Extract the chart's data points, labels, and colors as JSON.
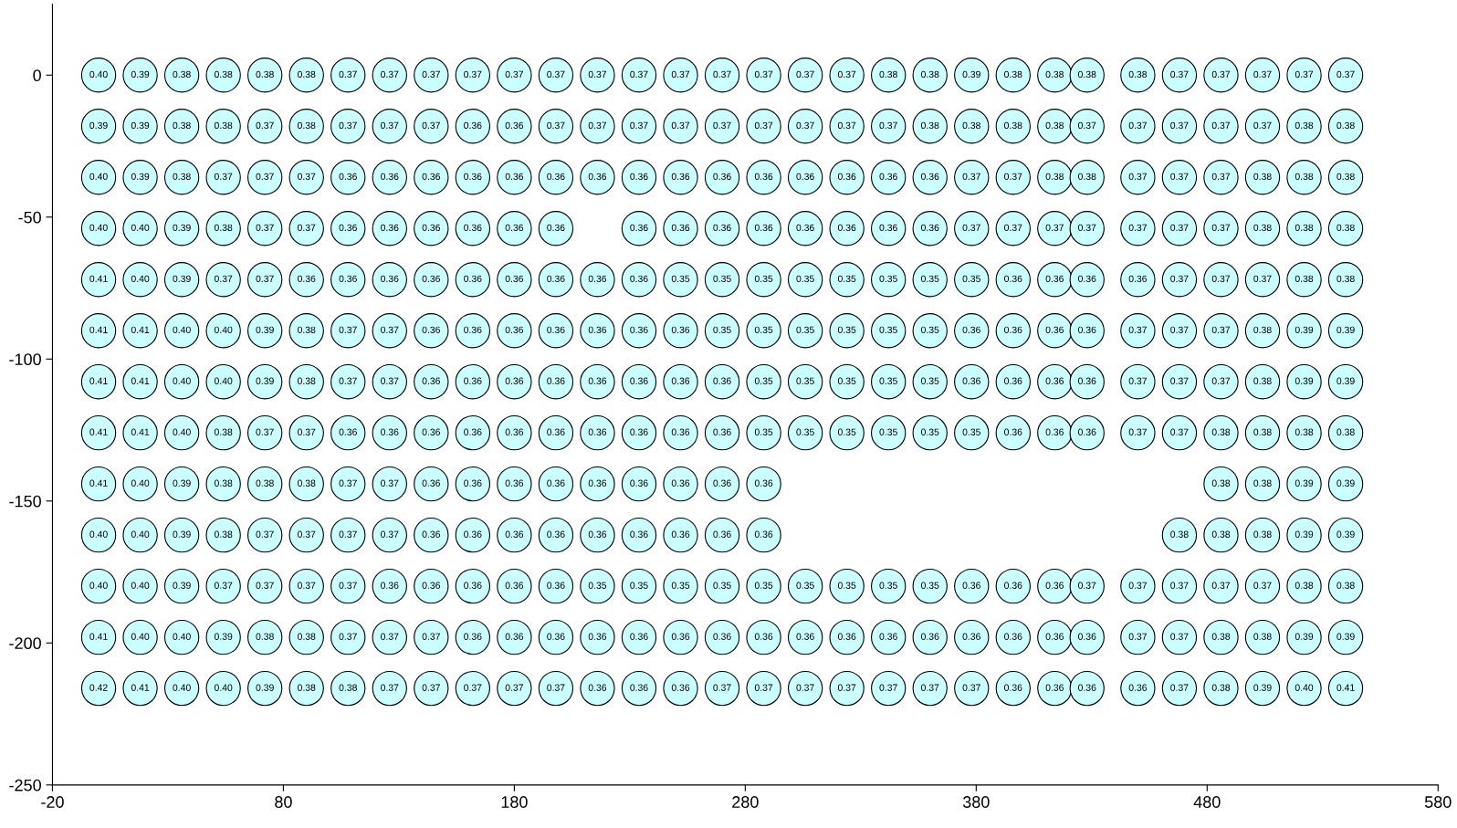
{
  "chart_data": {
    "type": "scatter",
    "marker": "circle",
    "grid": false,
    "x": [
      0,
      18,
      36,
      54,
      72,
      90,
      108,
      126,
      144,
      162,
      180,
      198,
      216,
      234,
      252,
      270,
      288,
      306,
      324,
      342,
      360,
      378,
      396,
      414,
      428,
      450,
      468,
      486,
      504,
      522,
      540
    ],
    "xlim": [
      -20,
      580
    ],
    "xticks": [
      -20,
      80,
      180,
      280,
      380,
      480,
      580
    ],
    "ylim": [
      -250,
      25
    ],
    "yticks": [
      0,
      -50,
      -100,
      -150,
      -200,
      -250
    ],
    "series": [
      {
        "color": "#ccffff",
        "values": [
          0,
          0,
          0,
          0,
          0,
          0,
          0,
          0,
          0,
          0,
          0,
          0,
          0,
          0,
          0,
          0,
          0,
          0,
          0,
          0,
          0,
          0,
          0,
          0,
          0,
          0,
          0,
          0,
          0,
          0,
          0
        ]
      },
      {
        "color": "#ccffff",
        "values": [
          -18,
          -18,
          -18,
          -18,
          -18,
          -18,
          -18,
          -18,
          -18,
          -18,
          -18,
          -18,
          -18,
          -18,
          -18,
          -18,
          -18,
          -18,
          -18,
          -18,
          -18,
          -18,
          -18,
          -18,
          -18,
          -18,
          -18,
          -18,
          -18,
          -18,
          -18
        ]
      },
      {
        "color": "#ccffff",
        "values": [
          -36,
          -36,
          -36,
          -36,
          -36,
          -36,
          -36,
          -36,
          -36,
          -36,
          -36,
          -36,
          -36,
          -36,
          -36,
          -36,
          -36,
          -36,
          -36,
          -36,
          -36,
          -36,
          -36,
          -36,
          -36,
          -36,
          -36,
          -36,
          -36,
          -36,
          -36
        ]
      },
      {
        "color": "#ccffff",
        "values": [
          -54,
          -54,
          -54,
          -54,
          -54,
          -54,
          -54,
          -54,
          -54,
          -54,
          -54,
          -54,
          null,
          -54,
          -54,
          -54,
          -54,
          -54,
          -54,
          -54,
          -54,
          -54,
          -54,
          -54,
          -54,
          -54,
          -54,
          -54,
          -54,
          -54,
          -54
        ]
      },
      {
        "color": "#ccffff",
        "values": [
          -72,
          -72,
          -72,
          -72,
          -72,
          -72,
          -72,
          -72,
          -72,
          -72,
          -72,
          -72,
          -72,
          -72,
          -72,
          -72,
          -72,
          -72,
          -72,
          -72,
          -72,
          -72,
          -72,
          -72,
          -72,
          -72,
          -72,
          -72,
          -72,
          -72,
          -72
        ]
      },
      {
        "color": "#ccffff",
        "values": [
          -90,
          -90,
          -90,
          -90,
          -90,
          -90,
          -90,
          -90,
          -90,
          -90,
          -90,
          -90,
          -90,
          -90,
          -90,
          -90,
          -90,
          -90,
          -90,
          -90,
          -90,
          -90,
          -90,
          -90,
          -90,
          -90,
          -90,
          -90,
          -90,
          -90,
          -90
        ]
      },
      {
        "color": "#ccffff",
        "values": [
          -108,
          -108,
          -108,
          -108,
          -108,
          -108,
          -108,
          -108,
          -108,
          -108,
          -108,
          -108,
          -108,
          -108,
          -108,
          -108,
          -108,
          -108,
          -108,
          -108,
          -108,
          -108,
          -108,
          -108,
          -108,
          -108,
          -108,
          -108,
          -108,
          -108,
          -108
        ]
      },
      {
        "color": "#ccffff",
        "values": [
          -126,
          -126,
          -126,
          -126,
          -126,
          -126,
          -126,
          -126,
          -126,
          -126,
          -126,
          -126,
          -126,
          -126,
          -126,
          -126,
          -126,
          -126,
          -126,
          -126,
          -126,
          -126,
          -126,
          -126,
          -126,
          -126,
          -126,
          -126,
          -126,
          -126,
          -126
        ]
      },
      {
        "color": "#ccffff",
        "values": [
          -144,
          -144,
          -144,
          -144,
          -144,
          -144,
          -144,
          -144,
          -144,
          -144,
          -144,
          -144,
          -144,
          -144,
          -144,
          -144,
          -144,
          null,
          null,
          null,
          null,
          null,
          null,
          null,
          null,
          null,
          null,
          -144,
          -144,
          -144,
          -144
        ]
      },
      {
        "color": "#ccffff",
        "values": [
          -162,
          -162,
          -162,
          -162,
          -162,
          -162,
          -162,
          -162,
          -162,
          -162,
          -162,
          -162,
          -162,
          -162,
          -162,
          -162,
          -162,
          null,
          null,
          null,
          null,
          null,
          null,
          null,
          null,
          null,
          -162,
          -162,
          -162,
          -162,
          -162
        ]
      },
      {
        "color": "#ccffff",
        "values": [
          -180,
          -180,
          -180,
          -180,
          -180,
          -180,
          -180,
          -180,
          -180,
          -180,
          -180,
          -180,
          -180,
          -180,
          -180,
          -180,
          -180,
          -180,
          -180,
          -180,
          -180,
          -180,
          -180,
          -180,
          -180,
          -180,
          -180,
          -180,
          -180,
          -180,
          -180
        ]
      },
      {
        "color": "#ccffff",
        "values": [
          -198,
          -198,
          -198,
          -198,
          -198,
          -198,
          -198,
          -198,
          -198,
          -198,
          -198,
          -198,
          -198,
          -198,
          -198,
          -198,
          -198,
          -198,
          -198,
          -198,
          -198,
          -198,
          -198,
          -198,
          -198,
          -198,
          -198,
          -198,
          -198,
          -198,
          -198
        ]
      },
      {
        "color": "#ccffff",
        "values": [
          -216,
          -216,
          -216,
          -216,
          -216,
          -216,
          -216,
          -216,
          -216,
          -216,
          -216,
          -216,
          -216,
          -216,
          -216,
          -216,
          -216,
          -216,
          -216,
          -216,
          -216,
          -216,
          -216,
          -216,
          -216,
          -216,
          -216,
          -216,
          -216,
          -216,
          -216
        ]
      }
    ],
    "annotations": [
      {
        "text": "0.40",
        "x": 0,
        "y": 0
      },
      {
        "text": "0.39",
        "x": 18,
        "y": 0
      },
      {
        "text": "0.38",
        "x": 36,
        "y": 0
      },
      {
        "text": "0.38",
        "x": 54,
        "y": 0
      },
      {
        "text": "0.38",
        "x": 72,
        "y": 0
      },
      {
        "text": "0.38",
        "x": 90,
        "y": 0
      },
      {
        "text": "0.37",
        "x": 108,
        "y": 0
      },
      {
        "text": "0.37",
        "x": 126,
        "y": 0
      },
      {
        "text": "0.37",
        "x": 144,
        "y": 0
      },
      {
        "text": "0.37",
        "x": 162,
        "y": 0
      },
      {
        "text": "0.37",
        "x": 180,
        "y": 0
      },
      {
        "text": "0.37",
        "x": 198,
        "y": 0
      },
      {
        "text": "0.37",
        "x": 216,
        "y": 0
      },
      {
        "text": "0.37",
        "x": 234,
        "y": 0
      },
      {
        "text": "0.37",
        "x": 252,
        "y": 0
      },
      {
        "text": "0.37",
        "x": 270,
        "y": 0
      },
      {
        "text": "0.37",
        "x": 288,
        "y": 0
      },
      {
        "text": "0.37",
        "x": 306,
        "y": 0
      },
      {
        "text": "0.37",
        "x": 324,
        "y": 0
      },
      {
        "text": "0.38",
        "x": 342,
        "y": 0
      },
      {
        "text": "0.38",
        "x": 360,
        "y": 0
      },
      {
        "text": "0.39",
        "x": 378,
        "y": 0
      },
      {
        "text": "0.38",
        "x": 396,
        "y": 0
      },
      {
        "text": "0.38",
        "x": 414,
        "y": 0
      },
      {
        "text": "0.38",
        "x": 428,
        "y": 0
      },
      {
        "text": "0.38",
        "x": 450,
        "y": 0
      },
      {
        "text": "0.37",
        "x": 468,
        "y": 0
      },
      {
        "text": "0.37",
        "x": 486,
        "y": 0
      },
      {
        "text": "0.37",
        "x": 504,
        "y": 0
      },
      {
        "text": "0.37",
        "x": 522,
        "y": 0
      },
      {
        "text": "0.37",
        "x": 540,
        "y": 0
      },
      {
        "text": "0.39",
        "x": 0,
        "y": -18
      },
      {
        "text": "0.39",
        "x": 18,
        "y": -18
      },
      {
        "text": "0.38",
        "x": 36,
        "y": -18
      },
      {
        "text": "0.38",
        "x": 54,
        "y": -18
      },
      {
        "text": "0.37",
        "x": 72,
        "y": -18
      },
      {
        "text": "0.38",
        "x": 90,
        "y": -18
      },
      {
        "text": "0.37",
        "x": 108,
        "y": -18
      },
      {
        "text": "0.37",
        "x": 126,
        "y": -18
      },
      {
        "text": "0.37",
        "x": 144,
        "y": -18
      },
      {
        "text": "0.36",
        "x": 162,
        "y": -18
      },
      {
        "text": "0.36",
        "x": 180,
        "y": -18
      },
      {
        "text": "0.37",
        "x": 198,
        "y": -18
      },
      {
        "text": "0.37",
        "x": 216,
        "y": -18
      },
      {
        "text": "0.37",
        "x": 234,
        "y": -18
      },
      {
        "text": "0.37",
        "x": 252,
        "y": -18
      },
      {
        "text": "0.37",
        "x": 270,
        "y": -18
      },
      {
        "text": "0.37",
        "x": 288,
        "y": -18
      },
      {
        "text": "0.37",
        "x": 306,
        "y": -18
      },
      {
        "text": "0.37",
        "x": 324,
        "y": -18
      },
      {
        "text": "0.37",
        "x": 342,
        "y": -18
      },
      {
        "text": "0.38",
        "x": 360,
        "y": -18
      },
      {
        "text": "0.38",
        "x": 378,
        "y": -18
      },
      {
        "text": "0.38",
        "x": 396,
        "y": -18
      },
      {
        "text": "0.38",
        "x": 414,
        "y": -18
      },
      {
        "text": "0.37",
        "x": 428,
        "y": -18
      },
      {
        "text": "0.37",
        "x": 450,
        "y": -18
      },
      {
        "text": "0.37",
        "x": 468,
        "y": -18
      },
      {
        "text": "0.37",
        "x": 486,
        "y": -18
      },
      {
        "text": "0.37",
        "x": 504,
        "y": -18
      },
      {
        "text": "0.38",
        "x": 522,
        "y": -18
      },
      {
        "text": "0.38",
        "x": 540,
        "y": -18
      },
      {
        "text": "0.40",
        "x": 0,
        "y": -36
      },
      {
        "text": "0.39",
        "x": 18,
        "y": -36
      },
      {
        "text": "0.38",
        "x": 36,
        "y": -36
      },
      {
        "text": "0.37",
        "x": 54,
        "y": -36
      },
      {
        "text": "0.37",
        "x": 72,
        "y": -36
      },
      {
        "text": "0.37",
        "x": 90,
        "y": -36
      },
      {
        "text": "0.36",
        "x": 108,
        "y": -36
      },
      {
        "text": "0.36",
        "x": 126,
        "y": -36
      },
      {
        "text": "0.36",
        "x": 144,
        "y": -36
      },
      {
        "text": "0.36",
        "x": 162,
        "y": -36
      },
      {
        "text": "0.36",
        "x": 180,
        "y": -36
      },
      {
        "text": "0.36",
        "x": 198,
        "y": -36
      },
      {
        "text": "0.36",
        "x": 216,
        "y": -36
      },
      {
        "text": "0.36",
        "x": 234,
        "y": -36
      },
      {
        "text": "0.36",
        "x": 252,
        "y": -36
      },
      {
        "text": "0.36",
        "x": 270,
        "y": -36
      },
      {
        "text": "0.36",
        "x": 288,
        "y": -36
      },
      {
        "text": "0.36",
        "x": 306,
        "y": -36
      },
      {
        "text": "0.36",
        "x": 324,
        "y": -36
      },
      {
        "text": "0.36",
        "x": 342,
        "y": -36
      },
      {
        "text": "0.36",
        "x": 360,
        "y": -36
      },
      {
        "text": "0.37",
        "x": 378,
        "y": -36
      },
      {
        "text": "0.37",
        "x": 396,
        "y": -36
      },
      {
        "text": "0.38",
        "x": 414,
        "y": -36
      },
      {
        "text": "0.38",
        "x": 428,
        "y": -36
      },
      {
        "text": "0.37",
        "x": 450,
        "y": -36
      },
      {
        "text": "0.37",
        "x": 468,
        "y": -36
      },
      {
        "text": "0.37",
        "x": 486,
        "y": -36
      },
      {
        "text": "0.38",
        "x": 504,
        "y": -36
      },
      {
        "text": "0.38",
        "x": 522,
        "y": -36
      },
      {
        "text": "0.38",
        "x": 540,
        "y": -36
      },
      {
        "text": "0.40",
        "x": 0,
        "y": -54
      },
      {
        "text": "0.40",
        "x": 18,
        "y": -54
      },
      {
        "text": "0.39",
        "x": 36,
        "y": -54
      },
      {
        "text": "0.38",
        "x": 54,
        "y": -54
      },
      {
        "text": "0.37",
        "x": 72,
        "y": -54
      },
      {
        "text": "0.37",
        "x": 90,
        "y": -54
      },
      {
        "text": "0.36",
        "x": 108,
        "y": -54
      },
      {
        "text": "0.36",
        "x": 126,
        "y": -54
      },
      {
        "text": "0.36",
        "x": 144,
        "y": -54
      },
      {
        "text": "0.36",
        "x": 162,
        "y": -54
      },
      {
        "text": "0.36",
        "x": 180,
        "y": -54
      },
      {
        "text": "0.36",
        "x": 198,
        "y": -54
      },
      {
        "text": "0.36",
        "x": 234,
        "y": -54
      },
      {
        "text": "0.36",
        "x": 252,
        "y": -54
      },
      {
        "text": "0.36",
        "x": 270,
        "y": -54
      },
      {
        "text": "0.36",
        "x": 288,
        "y": -54
      },
      {
        "text": "0.36",
        "x": 306,
        "y": -54
      },
      {
        "text": "0.36",
        "x": 324,
        "y": -54
      },
      {
        "text": "0.36",
        "x": 342,
        "y": -54
      },
      {
        "text": "0.36",
        "x": 360,
        "y": -54
      },
      {
        "text": "0.37",
        "x": 378,
        "y": -54
      },
      {
        "text": "0.37",
        "x": 396,
        "y": -54
      },
      {
        "text": "0.37",
        "x": 414,
        "y": -54
      },
      {
        "text": "0.37",
        "x": 428,
        "y": -54
      },
      {
        "text": "0.37",
        "x": 450,
        "y": -54
      },
      {
        "text": "0.37",
        "x": 468,
        "y": -54
      },
      {
        "text": "0.37",
        "x": 486,
        "y": -54
      },
      {
        "text": "0.38",
        "x": 504,
        "y": -54
      },
      {
        "text": "0.38",
        "x": 522,
        "y": -54
      },
      {
        "text": "0.38",
        "x": 540,
        "y": -54
      },
      {
        "text": "0.41",
        "x": 0,
        "y": -72
      },
      {
        "text": "0.40",
        "x": 18,
        "y": -72
      },
      {
        "text": "0.39",
        "x": 36,
        "y": -72
      },
      {
        "text": "0.37",
        "x": 54,
        "y": -72
      },
      {
        "text": "0.37",
        "x": 72,
        "y": -72
      },
      {
        "text": "0.36",
        "x": 90,
        "y": -72
      },
      {
        "text": "0.36",
        "x": 108,
        "y": -72
      },
      {
        "text": "0.36",
        "x": 126,
        "y": -72
      },
      {
        "text": "0.36",
        "x": 144,
        "y": -72
      },
      {
        "text": "0.36",
        "x": 162,
        "y": -72
      },
      {
        "text": "0.36",
        "x": 180,
        "y": -72
      },
      {
        "text": "0.36",
        "x": 198,
        "y": -72
      },
      {
        "text": "0.36",
        "x": 216,
        "y": -72
      },
      {
        "text": "0.36",
        "x": 234,
        "y": -72
      },
      {
        "text": "0.35",
        "x": 252,
        "y": -72
      },
      {
        "text": "0.35",
        "x": 270,
        "y": -72
      },
      {
        "text": "0.35",
        "x": 288,
        "y": -72
      },
      {
        "text": "0.35",
        "x": 306,
        "y": -72
      },
      {
        "text": "0.35",
        "x": 324,
        "y": -72
      },
      {
        "text": "0.35",
        "x": 342,
        "y": -72
      },
      {
        "text": "0.35",
        "x": 360,
        "y": -72
      },
      {
        "text": "0.35",
        "x": 378,
        "y": -72
      },
      {
        "text": "0.36",
        "x": 396,
        "y": -72
      },
      {
        "text": "0.36",
        "x": 414,
        "y": -72
      },
      {
        "text": "0.36",
        "x": 428,
        "y": -72
      },
      {
        "text": "0.36",
        "x": 450,
        "y": -72
      },
      {
        "text": "0.37",
        "x": 468,
        "y": -72
      },
      {
        "text": "0.37",
        "x": 486,
        "y": -72
      },
      {
        "text": "0.37",
        "x": 504,
        "y": -72
      },
      {
        "text": "0.38",
        "x": 522,
        "y": -72
      },
      {
        "text": "0.38",
        "x": 540,
        "y": -72
      },
      {
        "text": "0.41",
        "x": 0,
        "y": -90
      },
      {
        "text": "0.41",
        "x": 18,
        "y": -90
      },
      {
        "text": "0.40",
        "x": 36,
        "y": -90
      },
      {
        "text": "0.40",
        "x": 54,
        "y": -90
      },
      {
        "text": "0.39",
        "x": 72,
        "y": -90
      },
      {
        "text": "0.38",
        "x": 90,
        "y": -90
      },
      {
        "text": "0.37",
        "x": 108,
        "y": -90
      },
      {
        "text": "0.37",
        "x": 126,
        "y": -90
      },
      {
        "text": "0.36",
        "x": 144,
        "y": -90
      },
      {
        "text": "0.36",
        "x": 162,
        "y": -90
      },
      {
        "text": "0.36",
        "x": 180,
        "y": -90
      },
      {
        "text": "0.36",
        "x": 198,
        "y": -90
      },
      {
        "text": "0.36",
        "x": 216,
        "y": -90
      },
      {
        "text": "0.36",
        "x": 234,
        "y": -90
      },
      {
        "text": "0.36",
        "x": 252,
        "y": -90
      },
      {
        "text": "0.35",
        "x": 270,
        "y": -90
      },
      {
        "text": "0.35",
        "x": 288,
        "y": -90
      },
      {
        "text": "0.35",
        "x": 306,
        "y": -90
      },
      {
        "text": "0.35",
        "x": 324,
        "y": -90
      },
      {
        "text": "0.35",
        "x": 342,
        "y": -90
      },
      {
        "text": "0.35",
        "x": 360,
        "y": -90
      },
      {
        "text": "0.36",
        "x": 378,
        "y": -90
      },
      {
        "text": "0.36",
        "x": 396,
        "y": -90
      },
      {
        "text": "0.36",
        "x": 414,
        "y": -90
      },
      {
        "text": "0.36",
        "x": 428,
        "y": -90
      },
      {
        "text": "0.37",
        "x": 450,
        "y": -90
      },
      {
        "text": "0.37",
        "x": 468,
        "y": -90
      },
      {
        "text": "0.37",
        "x": 486,
        "y": -90
      },
      {
        "text": "0.38",
        "x": 504,
        "y": -90
      },
      {
        "text": "0.39",
        "x": 522,
        "y": -90
      },
      {
        "text": "0.39",
        "x": 540,
        "y": -90
      },
      {
        "text": "0.41",
        "x": 0,
        "y": -108
      },
      {
        "text": "0.41",
        "x": 18,
        "y": -108
      },
      {
        "text": "0.40",
        "x": 36,
        "y": -108
      },
      {
        "text": "0.40",
        "x": 54,
        "y": -108
      },
      {
        "text": "0.39",
        "x": 72,
        "y": -108
      },
      {
        "text": "0.38",
        "x": 90,
        "y": -108
      },
      {
        "text": "0.37",
        "x": 108,
        "y": -108
      },
      {
        "text": "0.37",
        "x": 126,
        "y": -108
      },
      {
        "text": "0.36",
        "x": 144,
        "y": -108
      },
      {
        "text": "0.36",
        "x": 162,
        "y": -108
      },
      {
        "text": "0.36",
        "x": 180,
        "y": -108
      },
      {
        "text": "0.36",
        "x": 198,
        "y": -108
      },
      {
        "text": "0.36",
        "x": 216,
        "y": -108
      },
      {
        "text": "0.36",
        "x": 234,
        "y": -108
      },
      {
        "text": "0.36",
        "x": 252,
        "y": -108
      },
      {
        "text": "0.36",
        "x": 270,
        "y": -108
      },
      {
        "text": "0.35",
        "x": 288,
        "y": -108
      },
      {
        "text": "0.35",
        "x": 306,
        "y": -108
      },
      {
        "text": "0.35",
        "x": 324,
        "y": -108
      },
      {
        "text": "0.35",
        "x": 342,
        "y": -108
      },
      {
        "text": "0.35",
        "x": 360,
        "y": -108
      },
      {
        "text": "0.36",
        "x": 378,
        "y": -108
      },
      {
        "text": "0.36",
        "x": 396,
        "y": -108
      },
      {
        "text": "0.36",
        "x": 414,
        "y": -108
      },
      {
        "text": "0.36",
        "x": 428,
        "y": -108
      },
      {
        "text": "0.37",
        "x": 450,
        "y": -108
      },
      {
        "text": "0.37",
        "x": 468,
        "y": -108
      },
      {
        "text": "0.37",
        "x": 486,
        "y": -108
      },
      {
        "text": "0.38",
        "x": 504,
        "y": -108
      },
      {
        "text": "0.39",
        "x": 522,
        "y": -108
      },
      {
        "text": "0.39",
        "x": 540,
        "y": -108
      },
      {
        "text": "0.41",
        "x": 0,
        "y": -126
      },
      {
        "text": "0.41",
        "x": 18,
        "y": -126
      },
      {
        "text": "0.40",
        "x": 36,
        "y": -126
      },
      {
        "text": "0.38",
        "x": 54,
        "y": -126
      },
      {
        "text": "0.37",
        "x": 72,
        "y": -126
      },
      {
        "text": "0.37",
        "x": 90,
        "y": -126
      },
      {
        "text": "0.36",
        "x": 108,
        "y": -126
      },
      {
        "text": "0.36",
        "x": 126,
        "y": -126
      },
      {
        "text": "0.36",
        "x": 144,
        "y": -126
      },
      {
        "text": "0.36",
        "x": 162,
        "y": -126
      },
      {
        "text": "0.36",
        "x": 180,
        "y": -126
      },
      {
        "text": "0.36",
        "x": 198,
        "y": -126
      },
      {
        "text": "0.36",
        "x": 216,
        "y": -126
      },
      {
        "text": "0.36",
        "x": 234,
        "y": -126
      },
      {
        "text": "0.36",
        "x": 252,
        "y": -126
      },
      {
        "text": "0.36",
        "x": 270,
        "y": -126
      },
      {
        "text": "0.35",
        "x": 288,
        "y": -126
      },
      {
        "text": "0.35",
        "x": 306,
        "y": -126
      },
      {
        "text": "0.35",
        "x": 324,
        "y": -126
      },
      {
        "text": "0.35",
        "x": 342,
        "y": -126
      },
      {
        "text": "0.35",
        "x": 360,
        "y": -126
      },
      {
        "text": "0.35",
        "x": 378,
        "y": -126
      },
      {
        "text": "0.36",
        "x": 396,
        "y": -126
      },
      {
        "text": "0.36",
        "x": 414,
        "y": -126
      },
      {
        "text": "0.36",
        "x": 428,
        "y": -126
      },
      {
        "text": "0.37",
        "x": 450,
        "y": -126
      },
      {
        "text": "0.37",
        "x": 468,
        "y": -126
      },
      {
        "text": "0.38",
        "x": 486,
        "y": -126
      },
      {
        "text": "0.38",
        "x": 504,
        "y": -126
      },
      {
        "text": "0.38",
        "x": 522,
        "y": -126
      },
      {
        "text": "0.38",
        "x": 540,
        "y": -126
      },
      {
        "text": "0.41",
        "x": 0,
        "y": -144
      },
      {
        "text": "0.40",
        "x": 18,
        "y": -144
      },
      {
        "text": "0.39",
        "x": 36,
        "y": -144
      },
      {
        "text": "0.38",
        "x": 54,
        "y": -144
      },
      {
        "text": "0.38",
        "x": 72,
        "y": -144
      },
      {
        "text": "0.38",
        "x": 90,
        "y": -144
      },
      {
        "text": "0.37",
        "x": 108,
        "y": -144
      },
      {
        "text": "0.37",
        "x": 126,
        "y": -144
      },
      {
        "text": "0.36",
        "x": 144,
        "y": -144
      },
      {
        "text": "0.36",
        "x": 162,
        "y": -144
      },
      {
        "text": "0.36",
        "x": 180,
        "y": -144
      },
      {
        "text": "0.36",
        "x": 198,
        "y": -144
      },
      {
        "text": "0.36",
        "x": 216,
        "y": -144
      },
      {
        "text": "0.36",
        "x": 234,
        "y": -144
      },
      {
        "text": "0.36",
        "x": 252,
        "y": -144
      },
      {
        "text": "0.36",
        "x": 270,
        "y": -144
      },
      {
        "text": "0.36",
        "x": 288,
        "y": -144
      },
      {
        "text": "0.38",
        "x": 486,
        "y": -144
      },
      {
        "text": "0.38",
        "x": 504,
        "y": -144
      },
      {
        "text": "0.39",
        "x": 522,
        "y": -144
      },
      {
        "text": "0.39",
        "x": 540,
        "y": -144
      },
      {
        "text": "0.40",
        "x": 0,
        "y": -162
      },
      {
        "text": "0.40",
        "x": 18,
        "y": -162
      },
      {
        "text": "0.39",
        "x": 36,
        "y": -162
      },
      {
        "text": "0.38",
        "x": 54,
        "y": -162
      },
      {
        "text": "0.37",
        "x": 72,
        "y": -162
      },
      {
        "text": "0.37",
        "x": 90,
        "y": -162
      },
      {
        "text": "0.37",
        "x": 108,
        "y": -162
      },
      {
        "text": "0.37",
        "x": 126,
        "y": -162
      },
      {
        "text": "0.36",
        "x": 144,
        "y": -162
      },
      {
        "text": "0.36",
        "x": 162,
        "y": -162
      },
      {
        "text": "0.36",
        "x": 180,
        "y": -162
      },
      {
        "text": "0.36",
        "x": 198,
        "y": -162
      },
      {
        "text": "0.36",
        "x": 216,
        "y": -162
      },
      {
        "text": "0.36",
        "x": 234,
        "y": -162
      },
      {
        "text": "0.36",
        "x": 252,
        "y": -162
      },
      {
        "text": "0.36",
        "x": 270,
        "y": -162
      },
      {
        "text": "0.36",
        "x": 288,
        "y": -162
      },
      {
        "text": "0.38",
        "x": 468,
        "y": -162
      },
      {
        "text": "0.38",
        "x": 486,
        "y": -162
      },
      {
        "text": "0.38",
        "x": 504,
        "y": -162
      },
      {
        "text": "0.39",
        "x": 522,
        "y": -162
      },
      {
        "text": "0.39",
        "x": 540,
        "y": -162
      },
      {
        "text": "0.40",
        "x": 0,
        "y": -180
      },
      {
        "text": "0.40",
        "x": 18,
        "y": -180
      },
      {
        "text": "0.39",
        "x": 36,
        "y": -180
      },
      {
        "text": "0.37",
        "x": 54,
        "y": -180
      },
      {
        "text": "0.37",
        "x": 72,
        "y": -180
      },
      {
        "text": "0.37",
        "x": 90,
        "y": -180
      },
      {
        "text": "0.37",
        "x": 108,
        "y": -180
      },
      {
        "text": "0.36",
        "x": 126,
        "y": -180
      },
      {
        "text": "0.36",
        "x": 144,
        "y": -180
      },
      {
        "text": "0.36",
        "x": 162,
        "y": -180
      },
      {
        "text": "0.36",
        "x": 180,
        "y": -180
      },
      {
        "text": "0.36",
        "x": 198,
        "y": -180
      },
      {
        "text": "0.35",
        "x": 216,
        "y": -180
      },
      {
        "text": "0.35",
        "x": 234,
        "y": -180
      },
      {
        "text": "0.35",
        "x": 252,
        "y": -180
      },
      {
        "text": "0.35",
        "x": 270,
        "y": -180
      },
      {
        "text": "0.35",
        "x": 288,
        "y": -180
      },
      {
        "text": "0.35",
        "x": 306,
        "y": -180
      },
      {
        "text": "0.35",
        "x": 324,
        "y": -180
      },
      {
        "text": "0.35",
        "x": 342,
        "y": -180
      },
      {
        "text": "0.35",
        "x": 360,
        "y": -180
      },
      {
        "text": "0.36",
        "x": 378,
        "y": -180
      },
      {
        "text": "0.36",
        "x": 396,
        "y": -180
      },
      {
        "text": "0.36",
        "x": 414,
        "y": -180
      },
      {
        "text": "0.37",
        "x": 428,
        "y": -180
      },
      {
        "text": "0.37",
        "x": 450,
        "y": -180
      },
      {
        "text": "0.37",
        "x": 468,
        "y": -180
      },
      {
        "text": "0.37",
        "x": 486,
        "y": -180
      },
      {
        "text": "0.37",
        "x": 504,
        "y": -180
      },
      {
        "text": "0.38",
        "x": 522,
        "y": -180
      },
      {
        "text": "0.38",
        "x": 540,
        "y": -180
      },
      {
        "text": "0.41",
        "x": 0,
        "y": -198
      },
      {
        "text": "0.40",
        "x": 18,
        "y": -198
      },
      {
        "text": "0.40",
        "x": 36,
        "y": -198
      },
      {
        "text": "0.39",
        "x": 54,
        "y": -198
      },
      {
        "text": "0.38",
        "x": 72,
        "y": -198
      },
      {
        "text": "0.38",
        "x": 90,
        "y": -198
      },
      {
        "text": "0.37",
        "x": 108,
        "y": -198
      },
      {
        "text": "0.37",
        "x": 126,
        "y": -198
      },
      {
        "text": "0.37",
        "x": 144,
        "y": -198
      },
      {
        "text": "0.36",
        "x": 162,
        "y": -198
      },
      {
        "text": "0.36",
        "x": 180,
        "y": -198
      },
      {
        "text": "0.36",
        "x": 198,
        "y": -198
      },
      {
        "text": "0.36",
        "x": 216,
        "y": -198
      },
      {
        "text": "0.36",
        "x": 234,
        "y": -198
      },
      {
        "text": "0.36",
        "x": 252,
        "y": -198
      },
      {
        "text": "0.36",
        "x": 270,
        "y": -198
      },
      {
        "text": "0.36",
        "x": 288,
        "y": -198
      },
      {
        "text": "0.36",
        "x": 306,
        "y": -198
      },
      {
        "text": "0.36",
        "x": 324,
        "y": -198
      },
      {
        "text": "0.36",
        "x": 342,
        "y": -198
      },
      {
        "text": "0.36",
        "x": 360,
        "y": -198
      },
      {
        "text": "0.36",
        "x": 378,
        "y": -198
      },
      {
        "text": "0.36",
        "x": 396,
        "y": -198
      },
      {
        "text": "0.36",
        "x": 414,
        "y": -198
      },
      {
        "text": "0.36",
        "x": 428,
        "y": -198
      },
      {
        "text": "0.37",
        "x": 450,
        "y": -198
      },
      {
        "text": "0.37",
        "x": 468,
        "y": -198
      },
      {
        "text": "0.38",
        "x": 486,
        "y": -198
      },
      {
        "text": "0.38",
        "x": 504,
        "y": -198
      },
      {
        "text": "0.39",
        "x": 522,
        "y": -198
      },
      {
        "text": "0.39",
        "x": 540,
        "y": -198
      },
      {
        "text": "0.42",
        "x": 0,
        "y": -216
      },
      {
        "text": "0.41",
        "x": 18,
        "y": -216
      },
      {
        "text": "0.40",
        "x": 36,
        "y": -216
      },
      {
        "text": "0.40",
        "x": 54,
        "y": -216
      },
      {
        "text": "0.39",
        "x": 72,
        "y": -216
      },
      {
        "text": "0.38",
        "x": 90,
        "y": -216
      },
      {
        "text": "0.38",
        "x": 108,
        "y": -216
      },
      {
        "text": "0.37",
        "x": 126,
        "y": -216
      },
      {
        "text": "0.37",
        "x": 144,
        "y": -216
      },
      {
        "text": "0.37",
        "x": 162,
        "y": -216
      },
      {
        "text": "0.37",
        "x": 180,
        "y": -216
      },
      {
        "text": "0.37",
        "x": 198,
        "y": -216
      },
      {
        "text": "0.36",
        "x": 216,
        "y": -216
      },
      {
        "text": "0.36",
        "x": 234,
        "y": -216
      },
      {
        "text": "0.36",
        "x": 252,
        "y": -216
      },
      {
        "text": "0.37",
        "x": 270,
        "y": -216
      },
      {
        "text": "0.37",
        "x": 288,
        "y": -216
      },
      {
        "text": "0.37",
        "x": 306,
        "y": -216
      },
      {
        "text": "0.37",
        "x": 324,
        "y": -216
      },
      {
        "text": "0.37",
        "x": 342,
        "y": -216
      },
      {
        "text": "0.37",
        "x": 360,
        "y": -216
      },
      {
        "text": "0.37",
        "x": 378,
        "y": -216
      },
      {
        "text": "0.36",
        "x": 396,
        "y": -216
      },
      {
        "text": "0.36",
        "x": 414,
        "y": -216
      },
      {
        "text": "0.36",
        "x": 428,
        "y": -216
      },
      {
        "text": "0.36",
        "x": 450,
        "y": -216
      },
      {
        "text": "0.37",
        "x": 468,
        "y": -216
      },
      {
        "text": "0.38",
        "x": 486,
        "y": -216
      },
      {
        "text": "0.39",
        "x": 504,
        "y": -216
      },
      {
        "text": "0.40",
        "x": 522,
        "y": -216
      },
      {
        "text": "0.41",
        "x": 540,
        "y": -216
      }
    ]
  }
}
